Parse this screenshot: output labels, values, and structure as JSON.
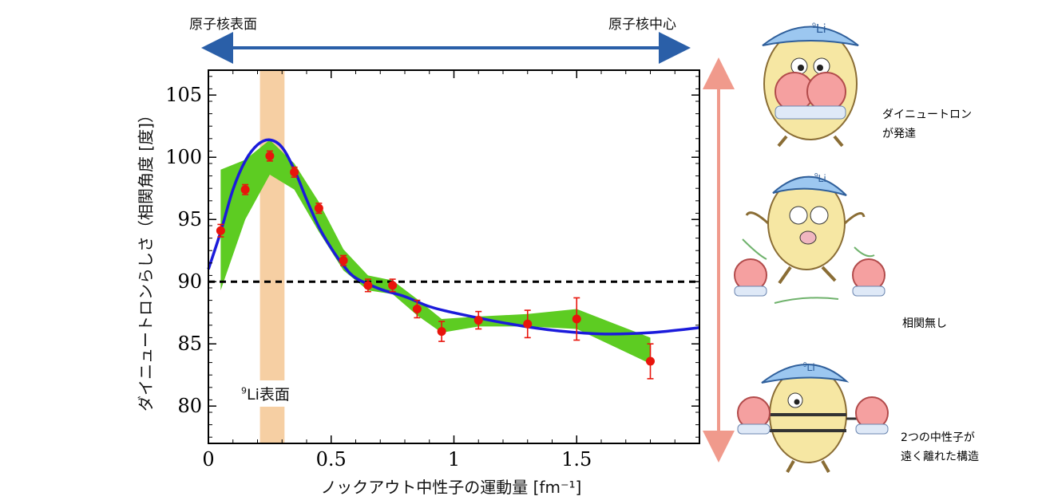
{
  "top_axis": {
    "left_label": "原子核表面",
    "right_label": "原子核中心",
    "arrow_color": "#2a5fa8"
  },
  "chart_data": {
    "type": "scatter",
    "xlabel": "ノックアウト中性子の運動量 [fm⁻¹]",
    "ylabel": "ダイニュートロンらしさ（相関角度 [度]）",
    "xlim": [
      0,
      2.0
    ],
    "ylim": [
      77,
      107
    ],
    "xticks": [
      0,
      0.5,
      1,
      1.5
    ],
    "xtick_labels": [
      "0",
      "0.5",
      "1",
      "1.5"
    ],
    "yticks": [
      80,
      85,
      90,
      95,
      100,
      105
    ],
    "ytick_labels": [
      "80",
      "85",
      "90",
      "95",
      "100",
      "105"
    ],
    "reference_line": {
      "y": 90,
      "style": "dashed"
    },
    "highlight_band": {
      "x_range": [
        0.21,
        0.31
      ],
      "label_sup": "9",
      "label": "Li表面",
      "color": "#f6cfa3"
    },
    "series": [
      {
        "kind": "points_with_errors",
        "color": "#e8150c",
        "points": [
          {
            "x": 0.05,
            "y": 94.1,
            "err": 0.5
          },
          {
            "x": 0.15,
            "y": 97.4,
            "err": 0.4
          },
          {
            "x": 0.25,
            "y": 100.1,
            "err": 0.4
          },
          {
            "x": 0.35,
            "y": 98.8,
            "err": 0.4
          },
          {
            "x": 0.45,
            "y": 95.9,
            "err": 0.4
          },
          {
            "x": 0.55,
            "y": 91.7,
            "err": 0.4
          },
          {
            "x": 0.65,
            "y": 89.7,
            "err": 0.5
          },
          {
            "x": 0.75,
            "y": 89.7,
            "err": 0.5
          },
          {
            "x": 0.85,
            "y": 87.8,
            "err": 0.7
          },
          {
            "x": 0.95,
            "y": 86.0,
            "err": 0.8
          },
          {
            "x": 1.1,
            "y": 86.9,
            "err": 0.7
          },
          {
            "x": 1.3,
            "y": 86.6,
            "err": 1.1
          },
          {
            "x": 1.5,
            "y": 87.0,
            "err": 1.7
          },
          {
            "x": 1.8,
            "y": 83.6,
            "err": 1.4
          }
        ]
      },
      {
        "kind": "band",
        "color": "#5dcc22",
        "x": [
          0.05,
          0.15,
          0.25,
          0.35,
          0.45,
          0.55,
          0.65,
          0.75,
          0.85,
          0.95,
          1.1,
          1.3,
          1.5,
          1.8
        ],
        "upper": [
          99.0,
          99.8,
          101.4,
          99.5,
          96.4,
          92.6,
          90.5,
          90.1,
          88.6,
          87.0,
          87.2,
          87.4,
          87.8,
          85.5
        ],
        "lower": [
          89.3,
          95.0,
          98.6,
          97.4,
          94.0,
          90.9,
          89.3,
          89.0,
          87.3,
          85.9,
          86.4,
          86.4,
          86.2,
          83.4
        ]
      },
      {
        "kind": "line",
        "color": "#1b1bdb",
        "x": [
          0.0,
          0.05,
          0.1,
          0.15,
          0.2,
          0.25,
          0.3,
          0.35,
          0.4,
          0.45,
          0.5,
          0.55,
          0.6,
          0.7,
          0.8,
          0.9,
          1.0,
          1.2,
          1.4,
          1.6,
          1.8,
          2.0
        ],
        "y": [
          91.0,
          94.0,
          97.4,
          99.7,
          101.0,
          101.4,
          100.8,
          99.0,
          96.6,
          94.4,
          92.7,
          91.3,
          90.3,
          89.4,
          88.8,
          88.0,
          87.5,
          86.7,
          86.1,
          85.8,
          85.9,
          86.3
        ]
      }
    ]
  },
  "right_scale": {
    "arrow_color": "#f09a8c"
  },
  "illustrations": [
    {
      "icon": "dineutron-mascot-icon",
      "cap_superscript": "9",
      "cap_text": "Li",
      "caption_lines": [
        "ダイニュートロン",
        "が発達"
      ]
    },
    {
      "icon": "uncorrelated-mascot-icon",
      "cap_superscript": "9",
      "cap_text": "Li",
      "caption_lines": [
        "相関無し"
      ]
    },
    {
      "icon": "separated-mascot-icon",
      "cap_superscript": "9",
      "cap_text": "Li",
      "caption_lines": [
        "2つの中性子が",
        "遠く離れた構造"
      ]
    }
  ]
}
